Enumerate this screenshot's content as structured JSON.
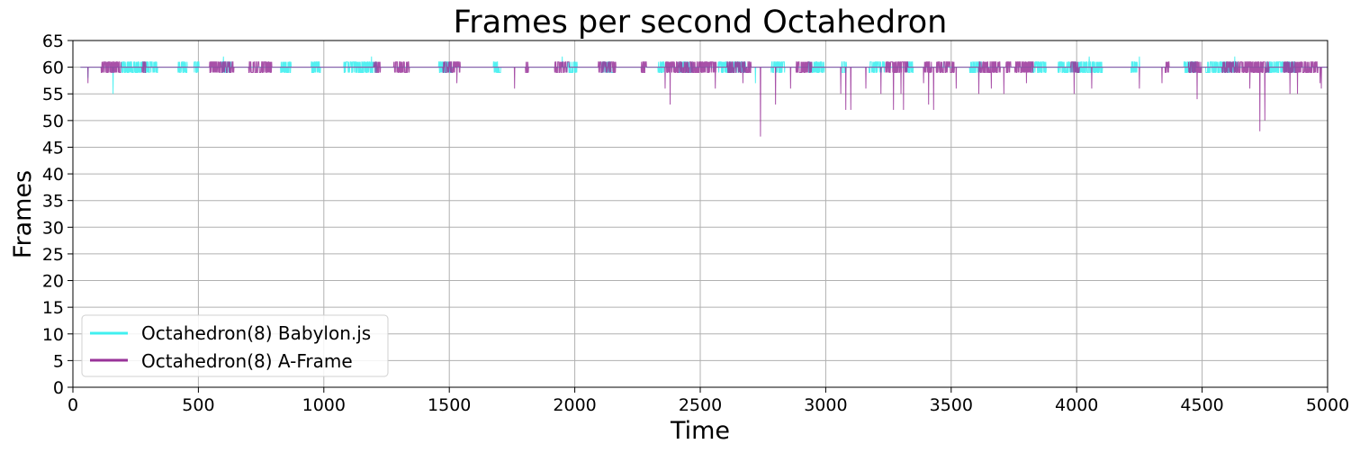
{
  "chart_data": {
    "type": "line",
    "title": "Frames per second Octahedron",
    "xlabel": "Time",
    "ylabel": "Frames",
    "xlim": [
      0,
      5000
    ],
    "ylim": [
      0,
      65
    ],
    "x_ticks": [
      0,
      500,
      1000,
      1500,
      2000,
      2500,
      3000,
      3500,
      4000,
      4500,
      5000
    ],
    "y_ticks": [
      0,
      5,
      10,
      15,
      20,
      25,
      30,
      35,
      40,
      45,
      50,
      55,
      60,
      65
    ],
    "grid": true,
    "legend_position": "lower-left",
    "baseline": 60,
    "series": [
      {
        "name": "Octahedron(8) Babylon.js",
        "color": "#40f0f0",
        "noise_above": 61,
        "noise_below": 59,
        "dips": [
          [
            55,
            160
          ],
          [
            57,
            2720
          ],
          [
            58,
            60
          ],
          [
            59,
            2150
          ],
          [
            59,
            3320
          ]
        ],
        "peaks": [
          [
            62,
            600
          ],
          [
            62,
            1190
          ],
          [
            62,
            1950
          ],
          [
            62,
            4050
          ],
          [
            62,
            4630
          ],
          [
            62,
            4250
          ],
          [
            61,
            3470
          ]
        ]
      },
      {
        "name": "Octahedron(8) A-Frame",
        "color": "#993399",
        "noise_above": 61,
        "noise_below": 59,
        "dips": [
          [
            57,
            60
          ],
          [
            57,
            1530
          ],
          [
            56,
            1760
          ],
          [
            56,
            2360
          ],
          [
            53,
            2380
          ],
          [
            56,
            2560
          ],
          [
            57,
            2670
          ],
          [
            47,
            2740
          ],
          [
            53,
            2800
          ],
          [
            56,
            2860
          ],
          [
            55,
            3060
          ],
          [
            52,
            3080
          ],
          [
            52,
            3100
          ],
          [
            56,
            3160
          ],
          [
            55,
            3220
          ],
          [
            52,
            3270
          ],
          [
            55,
            3300
          ],
          [
            52,
            3310
          ],
          [
            57,
            3390
          ],
          [
            53,
            3410
          ],
          [
            52,
            3430
          ],
          [
            56,
            3520
          ],
          [
            55,
            3610
          ],
          [
            56,
            3660
          ],
          [
            55,
            3710
          ],
          [
            57,
            3800
          ],
          [
            55,
            3990
          ],
          [
            56,
            4060
          ],
          [
            56,
            4250
          ],
          [
            57,
            4340
          ],
          [
            54,
            4480
          ],
          [
            56,
            4690
          ],
          [
            48,
            4730
          ],
          [
            50,
            4750
          ],
          [
            55,
            4850
          ],
          [
            55,
            4880
          ],
          [
            57,
            4970
          ],
          [
            56,
            4975
          ]
        ],
        "peaks": []
      }
    ]
  }
}
